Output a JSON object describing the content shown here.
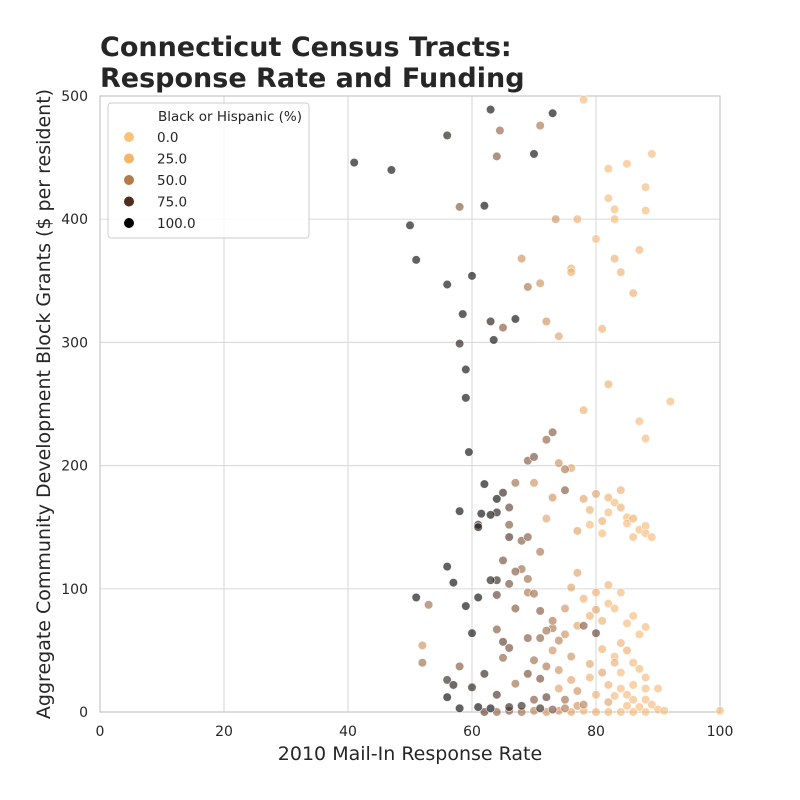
{
  "chart_data": {
    "type": "scatter",
    "title_lines": [
      "Connecticut Census Tracts:",
      "Response Rate and Funding"
    ],
    "xlabel": "2010 Mail-In Response Rate",
    "ylabel": "Aggregate Community Development Block Grants ($ per resident)",
    "xlim": [
      0,
      100
    ],
    "ylim": [
      0,
      500
    ],
    "xticks": [
      "0",
      "20",
      "40",
      "60",
      "80",
      "100"
    ],
    "yticks": [
      "0",
      "100",
      "200",
      "300",
      "400",
      "500"
    ],
    "grid": true,
    "legend": {
      "title": "Black or Hispanic (%)",
      "placement": "top-left",
      "entries": [
        {
          "label": "0.0",
          "color": "#f9c27a"
        },
        {
          "label": "25.0",
          "color": "#f2b56a"
        },
        {
          "label": "50.0",
          "color": "#b37a4c"
        },
        {
          "label": "75.0",
          "color": "#4e2e1c"
        },
        {
          "label": "100.0",
          "color": "#000000"
        }
      ]
    },
    "color_scale": [
      "#f9c27a",
      "#e9a767",
      "#b37a4c",
      "#6e4530",
      "#000000"
    ],
    "points": [
      [
        41,
        446,
        100
      ],
      [
        47,
        440,
        100
      ],
      [
        50,
        395,
        100
      ],
      [
        51,
        367,
        100
      ],
      [
        56,
        468,
        95
      ],
      [
        56,
        347,
        100
      ],
      [
        58,
        410,
        70
      ],
      [
        58,
        299,
        95
      ],
      [
        58.5,
        323,
        100
      ],
      [
        59,
        278,
        100
      ],
      [
        59,
        255,
        100
      ],
      [
        59.5,
        211,
        100
      ],
      [
        60,
        354,
        100
      ],
      [
        62,
        411,
        100
      ],
      [
        63,
        489,
        100
      ],
      [
        63,
        317,
        95
      ],
      [
        63.5,
        302,
        100
      ],
      [
        64,
        451,
        70
      ],
      [
        64.5,
        472,
        65
      ],
      [
        65,
        312,
        70
      ],
      [
        67,
        319,
        100
      ],
      [
        68,
        368,
        40
      ],
      [
        69,
        345,
        55
      ],
      [
        70,
        453,
        100
      ],
      [
        71,
        348,
        40
      ],
      [
        71,
        476,
        55
      ],
      [
        72,
        317,
        40
      ],
      [
        73,
        486,
        100
      ],
      [
        73.5,
        400,
        40
      ],
      [
        74,
        305,
        30
      ],
      [
        76,
        360,
        20
      ],
      [
        76,
        357,
        20
      ],
      [
        78,
        497,
        10
      ],
      [
        77,
        400,
        20
      ],
      [
        80,
        384,
        10
      ],
      [
        81,
        311,
        20
      ],
      [
        82,
        417,
        10
      ],
      [
        82,
        441,
        10
      ],
      [
        83,
        408,
        10
      ],
      [
        83,
        400,
        10
      ],
      [
        83,
        368,
        20
      ],
      [
        84,
        357,
        20
      ],
      [
        85,
        445,
        10
      ],
      [
        86,
        340,
        20
      ],
      [
        88,
        426,
        10
      ],
      [
        88,
        407,
        10
      ],
      [
        89,
        453,
        10
      ],
      [
        87,
        375,
        15
      ],
      [
        92,
        252,
        10
      ],
      [
        82,
        266,
        20
      ],
      [
        58,
        163,
        100
      ],
      [
        61,
        150,
        95
      ],
      [
        61,
        152,
        90
      ],
      [
        61.5,
        161,
        100
      ],
      [
        62,
        185,
        100
      ],
      [
        63,
        160,
        100
      ],
      [
        64,
        173,
        100
      ],
      [
        64,
        162,
        95
      ],
      [
        65,
        178,
        90
      ],
      [
        66,
        152,
        70
      ],
      [
        66,
        142,
        85
      ],
      [
        66,
        166,
        80
      ],
      [
        67,
        186,
        60
      ],
      [
        68,
        139,
        70
      ],
      [
        69,
        204,
        70
      ],
      [
        69,
        142,
        70
      ],
      [
        70,
        207,
        75
      ],
      [
        70,
        186,
        40
      ],
      [
        71,
        130,
        55
      ],
      [
        72,
        157,
        30
      ],
      [
        72,
        221,
        65
      ],
      [
        73,
        227,
        70
      ],
      [
        73,
        174,
        40
      ],
      [
        74,
        202,
        40
      ],
      [
        75,
        197,
        55
      ],
      [
        75,
        180,
        70
      ],
      [
        76,
        198,
        30
      ],
      [
        77,
        147,
        30
      ],
      [
        78,
        245,
        20
      ],
      [
        78,
        173,
        30
      ],
      [
        79,
        164,
        20
      ],
      [
        79,
        152,
        10
      ],
      [
        80,
        177,
        30
      ],
      [
        81,
        155,
        20
      ],
      [
        81,
        145,
        10
      ],
      [
        82,
        174,
        20
      ],
      [
        82,
        162,
        10
      ],
      [
        83,
        170,
        10
      ],
      [
        84,
        180,
        20
      ],
      [
        84,
        166,
        20
      ],
      [
        85,
        158,
        10
      ],
      [
        85,
        153,
        10
      ],
      [
        86,
        157,
        20
      ],
      [
        86,
        142,
        10
      ],
      [
        87,
        148,
        10
      ],
      [
        88,
        151,
        10
      ],
      [
        88,
        145,
        10
      ],
      [
        89,
        142,
        10
      ],
      [
        87,
        236,
        10
      ],
      [
        88,
        222,
        10
      ],
      [
        56,
        118,
        100
      ],
      [
        57,
        105,
        100
      ],
      [
        59,
        86,
        100
      ],
      [
        60,
        64,
        100
      ],
      [
        61,
        93,
        100
      ],
      [
        63,
        107,
        95
      ],
      [
        64,
        107,
        90
      ],
      [
        64,
        95,
        80
      ],
      [
        65,
        123,
        75
      ],
      [
        66,
        104,
        75
      ],
      [
        67,
        114,
        70
      ],
      [
        68,
        116,
        60
      ],
      [
        69,
        108,
        60
      ],
      [
        70,
        96,
        60
      ],
      [
        71,
        82,
        70
      ],
      [
        72,
        66,
        60
      ],
      [
        73,
        68,
        55
      ],
      [
        74,
        58,
        50
      ],
      [
        75,
        84,
        40
      ],
      [
        76,
        101,
        30
      ],
      [
        77,
        113,
        30
      ],
      [
        78,
        92,
        20
      ],
      [
        79,
        78,
        20
      ],
      [
        80,
        83,
        30
      ],
      [
        80,
        97,
        20
      ],
      [
        81,
        74,
        20
      ],
      [
        82,
        103,
        20
      ],
      [
        82,
        88,
        10
      ],
      [
        83,
        84,
        10
      ],
      [
        84,
        97,
        10
      ],
      [
        85,
        72,
        10
      ],
      [
        86,
        78,
        10
      ],
      [
        87,
        63,
        10
      ],
      [
        88,
        69,
        10
      ],
      [
        84,
        56,
        20
      ],
      [
        85,
        50,
        20
      ],
      [
        83,
        45,
        10
      ],
      [
        86,
        40,
        10
      ],
      [
        87,
        35,
        10
      ],
      [
        88,
        28,
        10
      ],
      [
        51,
        93,
        100
      ],
      [
        53,
        87,
        60
      ],
      [
        52,
        54,
        40
      ],
      [
        52,
        40,
        60
      ],
      [
        56,
        26,
        90
      ],
      [
        56,
        12,
        100
      ],
      [
        57,
        22,
        95
      ],
      [
        58,
        3,
        100
      ],
      [
        60,
        20,
        95
      ],
      [
        61,
        4,
        100
      ],
      [
        62,
        31,
        90
      ],
      [
        63,
        3,
        100
      ],
      [
        64,
        14,
        85
      ],
      [
        64,
        67,
        70
      ],
      [
        65,
        44,
        65
      ],
      [
        66,
        52,
        75
      ],
      [
        66,
        4,
        90
      ],
      [
        67,
        84,
        70
      ],
      [
        67,
        23,
        60
      ],
      [
        68,
        5,
        90
      ],
      [
        69,
        31,
        75
      ],
      [
        69,
        60,
        70
      ],
      [
        70,
        42,
        60
      ],
      [
        70,
        10,
        70
      ],
      [
        71,
        27,
        75
      ],
      [
        71,
        60,
        65
      ],
      [
        72,
        37,
        55
      ],
      [
        72,
        12,
        80
      ],
      [
        73,
        74,
        55
      ],
      [
        73,
        50,
        40
      ],
      [
        74,
        34,
        40
      ],
      [
        74,
        19,
        30
      ],
      [
        75,
        63,
        40
      ],
      [
        75,
        10,
        60
      ],
      [
        76,
        45,
        40
      ],
      [
        76,
        26,
        30
      ],
      [
        77,
        17,
        40
      ],
      [
        77,
        70,
        30
      ],
      [
        78,
        6,
        50
      ],
      [
        78,
        70,
        70
      ],
      [
        79,
        39,
        30
      ],
      [
        79,
        28,
        20
      ],
      [
        80,
        64,
        80
      ],
      [
        80,
        14,
        20
      ],
      [
        81,
        32,
        30
      ],
      [
        81,
        51,
        20
      ],
      [
        82,
        22,
        20
      ],
      [
        82,
        8,
        30
      ],
      [
        83,
        40,
        20
      ],
      [
        83,
        13,
        10
      ],
      [
        84,
        32,
        10
      ],
      [
        84,
        19,
        10
      ],
      [
        85,
        14,
        10
      ],
      [
        85,
        5,
        10
      ],
      [
        86,
        22,
        10
      ],
      [
        86,
        10,
        10
      ],
      [
        87,
        4,
        10
      ],
      [
        88,
        19,
        10
      ],
      [
        88,
        10,
        10
      ],
      [
        89,
        6,
        10
      ],
      [
        90,
        2,
        10
      ],
      [
        90,
        19,
        10
      ],
      [
        91,
        1,
        10
      ],
      [
        100,
        1,
        10
      ],
      [
        62,
        0,
        80
      ],
      [
        64,
        0,
        65
      ],
      [
        66,
        1,
        70
      ],
      [
        68,
        0,
        60
      ],
      [
        70,
        1,
        50
      ],
      [
        72,
        0,
        40
      ],
      [
        74,
        1,
        40
      ],
      [
        76,
        0,
        30
      ],
      [
        78,
        1,
        20
      ],
      [
        80,
        0,
        20
      ],
      [
        82,
        0,
        15
      ],
      [
        84,
        0,
        10
      ],
      [
        86,
        0,
        10
      ],
      [
        88,
        0,
        10
      ],
      [
        58,
        37,
        70
      ],
      [
        65,
        57,
        80
      ],
      [
        69,
        97,
        55
      ],
      [
        71,
        3,
        90
      ],
      [
        73,
        2,
        75
      ],
      [
        75,
        3,
        55
      ],
      [
        77,
        5,
        40
      ]
    ]
  }
}
